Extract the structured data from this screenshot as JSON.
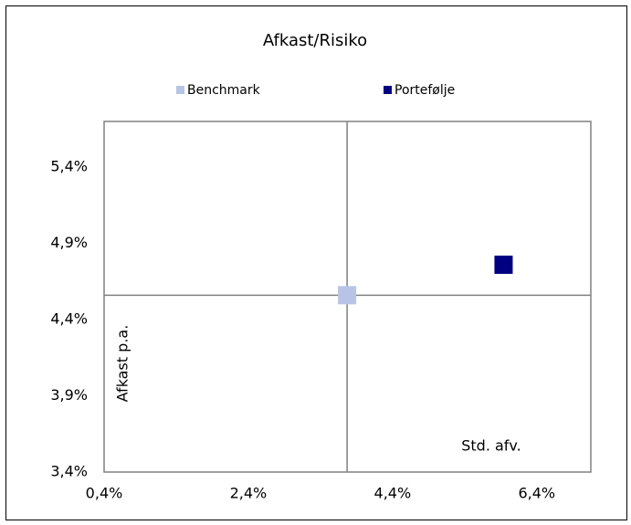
{
  "chart_data": {
    "type": "scatter",
    "title": "Afkast/Risiko",
    "x_label": "Std. afv.",
    "y_label": "Afkast p.a.",
    "series": [
      {
        "name": "Benchmark",
        "color": "#b8c4e6",
        "x": [
          3.77
        ],
        "values": [
          4.56
        ]
      },
      {
        "name": "Portefølje",
        "color": "#000080",
        "x": [
          5.94
        ],
        "values": [
          4.76
        ]
      }
    ],
    "xlim": [
      0.4,
      7.15
    ],
    "xticks": [
      {
        "value": 0.4,
        "label": "0,4%"
      },
      {
        "value": 2.4,
        "label": "2,4%"
      },
      {
        "value": 4.4,
        "label": "4,4%"
      },
      {
        "value": 6.4,
        "label": "6,4%"
      }
    ],
    "ylim": [
      3.4,
      5.7
    ],
    "yticks": [
      {
        "value": 3.4,
        "label": "3,4%"
      },
      {
        "value": 3.9,
        "label": "3,9%"
      },
      {
        "value": 4.4,
        "label": "4,4%"
      },
      {
        "value": 4.9,
        "label": "4,9%"
      },
      {
        "value": 5.4,
        "label": "5,4%"
      }
    ],
    "grid": false
  }
}
